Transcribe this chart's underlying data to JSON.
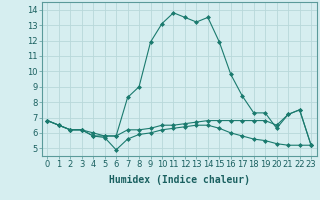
{
  "line1_x": [
    0,
    1,
    2,
    3,
    4,
    5,
    6,
    7,
    8,
    9,
    10,
    11,
    12,
    13,
    14,
    15,
    16,
    17,
    18,
    19,
    20,
    21,
    22,
    23
  ],
  "line1_y": [
    6.8,
    6.5,
    6.2,
    6.2,
    6.0,
    5.8,
    5.8,
    8.3,
    9.0,
    11.9,
    13.1,
    13.8,
    13.5,
    13.2,
    13.5,
    11.9,
    9.8,
    8.4,
    7.3,
    7.3,
    6.3,
    7.2,
    7.5,
    5.2
  ],
  "line2_x": [
    0,
    1,
    2,
    3,
    4,
    5,
    6,
    7,
    8,
    9,
    10,
    11,
    12,
    13,
    14,
    15,
    16,
    17,
    18,
    19,
    20,
    21,
    22,
    23
  ],
  "line2_y": [
    6.8,
    6.5,
    6.2,
    6.2,
    5.8,
    5.8,
    5.8,
    6.2,
    6.2,
    6.3,
    6.5,
    6.5,
    6.6,
    6.7,
    6.8,
    6.8,
    6.8,
    6.8,
    6.8,
    6.8,
    6.5,
    7.2,
    7.5,
    5.2
  ],
  "line3_x": [
    0,
    1,
    2,
    3,
    4,
    5,
    6,
    7,
    8,
    9,
    10,
    11,
    12,
    13,
    14,
    15,
    16,
    17,
    18,
    19,
    20,
    21,
    22,
    23
  ],
  "line3_y": [
    6.8,
    6.5,
    6.2,
    6.2,
    5.8,
    5.7,
    4.9,
    5.6,
    5.9,
    6.0,
    6.2,
    6.3,
    6.4,
    6.5,
    6.5,
    6.3,
    6.0,
    5.8,
    5.6,
    5.5,
    5.3,
    5.2,
    5.2,
    5.2
  ],
  "line_color": "#1a7a6e",
  "marker": "D",
  "marker_size": 2,
  "bg_color": "#d6eef0",
  "grid_color": "#b8d8da",
  "xlabel": "Humidex (Indice chaleur)",
  "xlabel_fontsize": 7,
  "xlim": [
    -0.5,
    23.5
  ],
  "ylim": [
    4.5,
    14.5
  ],
  "yticks": [
    5,
    6,
    7,
    8,
    9,
    10,
    11,
    12,
    13,
    14
  ],
  "xticks": [
    0,
    1,
    2,
    3,
    4,
    5,
    6,
    7,
    8,
    9,
    10,
    11,
    12,
    13,
    14,
    15,
    16,
    17,
    18,
    19,
    20,
    21,
    22,
    23
  ],
  "tick_fontsize": 6,
  "line_width": 0.8
}
